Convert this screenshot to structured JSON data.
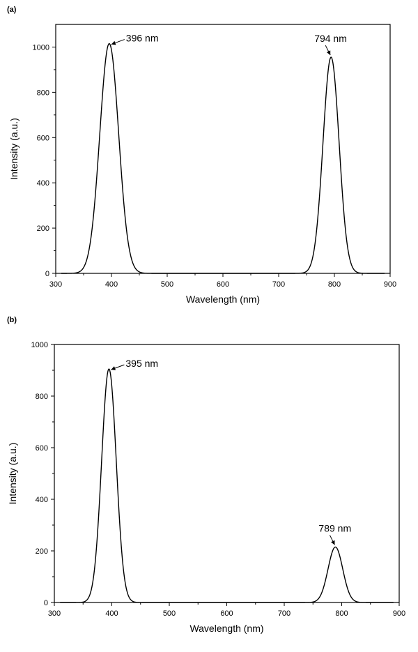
{
  "chart_data": [
    {
      "panel_label": "(a)",
      "type": "line",
      "xlabel": "Wavelength (nm)",
      "ylabel": "Intensity (a.u.)",
      "xlim": [
        300,
        900
      ],
      "ylim": [
        0,
        1100
      ],
      "xticks": [
        300,
        400,
        500,
        600,
        700,
        800,
        900
      ],
      "yticks": [
        0,
        200,
        400,
        600,
        800,
        1000
      ],
      "series": [
        {
          "type": "gaussian_peaks",
          "peaks": [
            {
              "center": 396,
              "height": 1015,
              "fwhm": 40
            },
            {
              "center": 794,
              "height": 955,
              "fwhm": 34
            }
          ]
        }
      ],
      "annotations": [
        {
          "text": "396 nm",
          "x": 396,
          "y": 1015,
          "label_side": "right"
        },
        {
          "text": "794 nm",
          "x": 794,
          "y": 955,
          "label_side": "above"
        }
      ]
    },
    {
      "panel_label": "(b)",
      "type": "line",
      "xlabel": "Wavelength (nm)",
      "ylabel": "Intensity (a.u.)",
      "xlim": [
        300,
        900
      ],
      "ylim": [
        0,
        1000
      ],
      "xticks": [
        300,
        400,
        500,
        600,
        700,
        800,
        900
      ],
      "yticks": [
        0,
        200,
        400,
        600,
        800,
        1000
      ],
      "series": [
        {
          "type": "gaussian_peaks",
          "peaks": [
            {
              "center": 395,
              "height": 905,
              "fwhm": 30
            },
            {
              "center": 789,
              "height": 215,
              "fwhm": 30
            }
          ]
        }
      ],
      "annotations": [
        {
          "text": "395 nm",
          "x": 395,
          "y": 905,
          "label_side": "right"
        },
        {
          "text": "789 nm",
          "x": 789,
          "y": 215,
          "label_side": "above"
        }
      ]
    }
  ]
}
